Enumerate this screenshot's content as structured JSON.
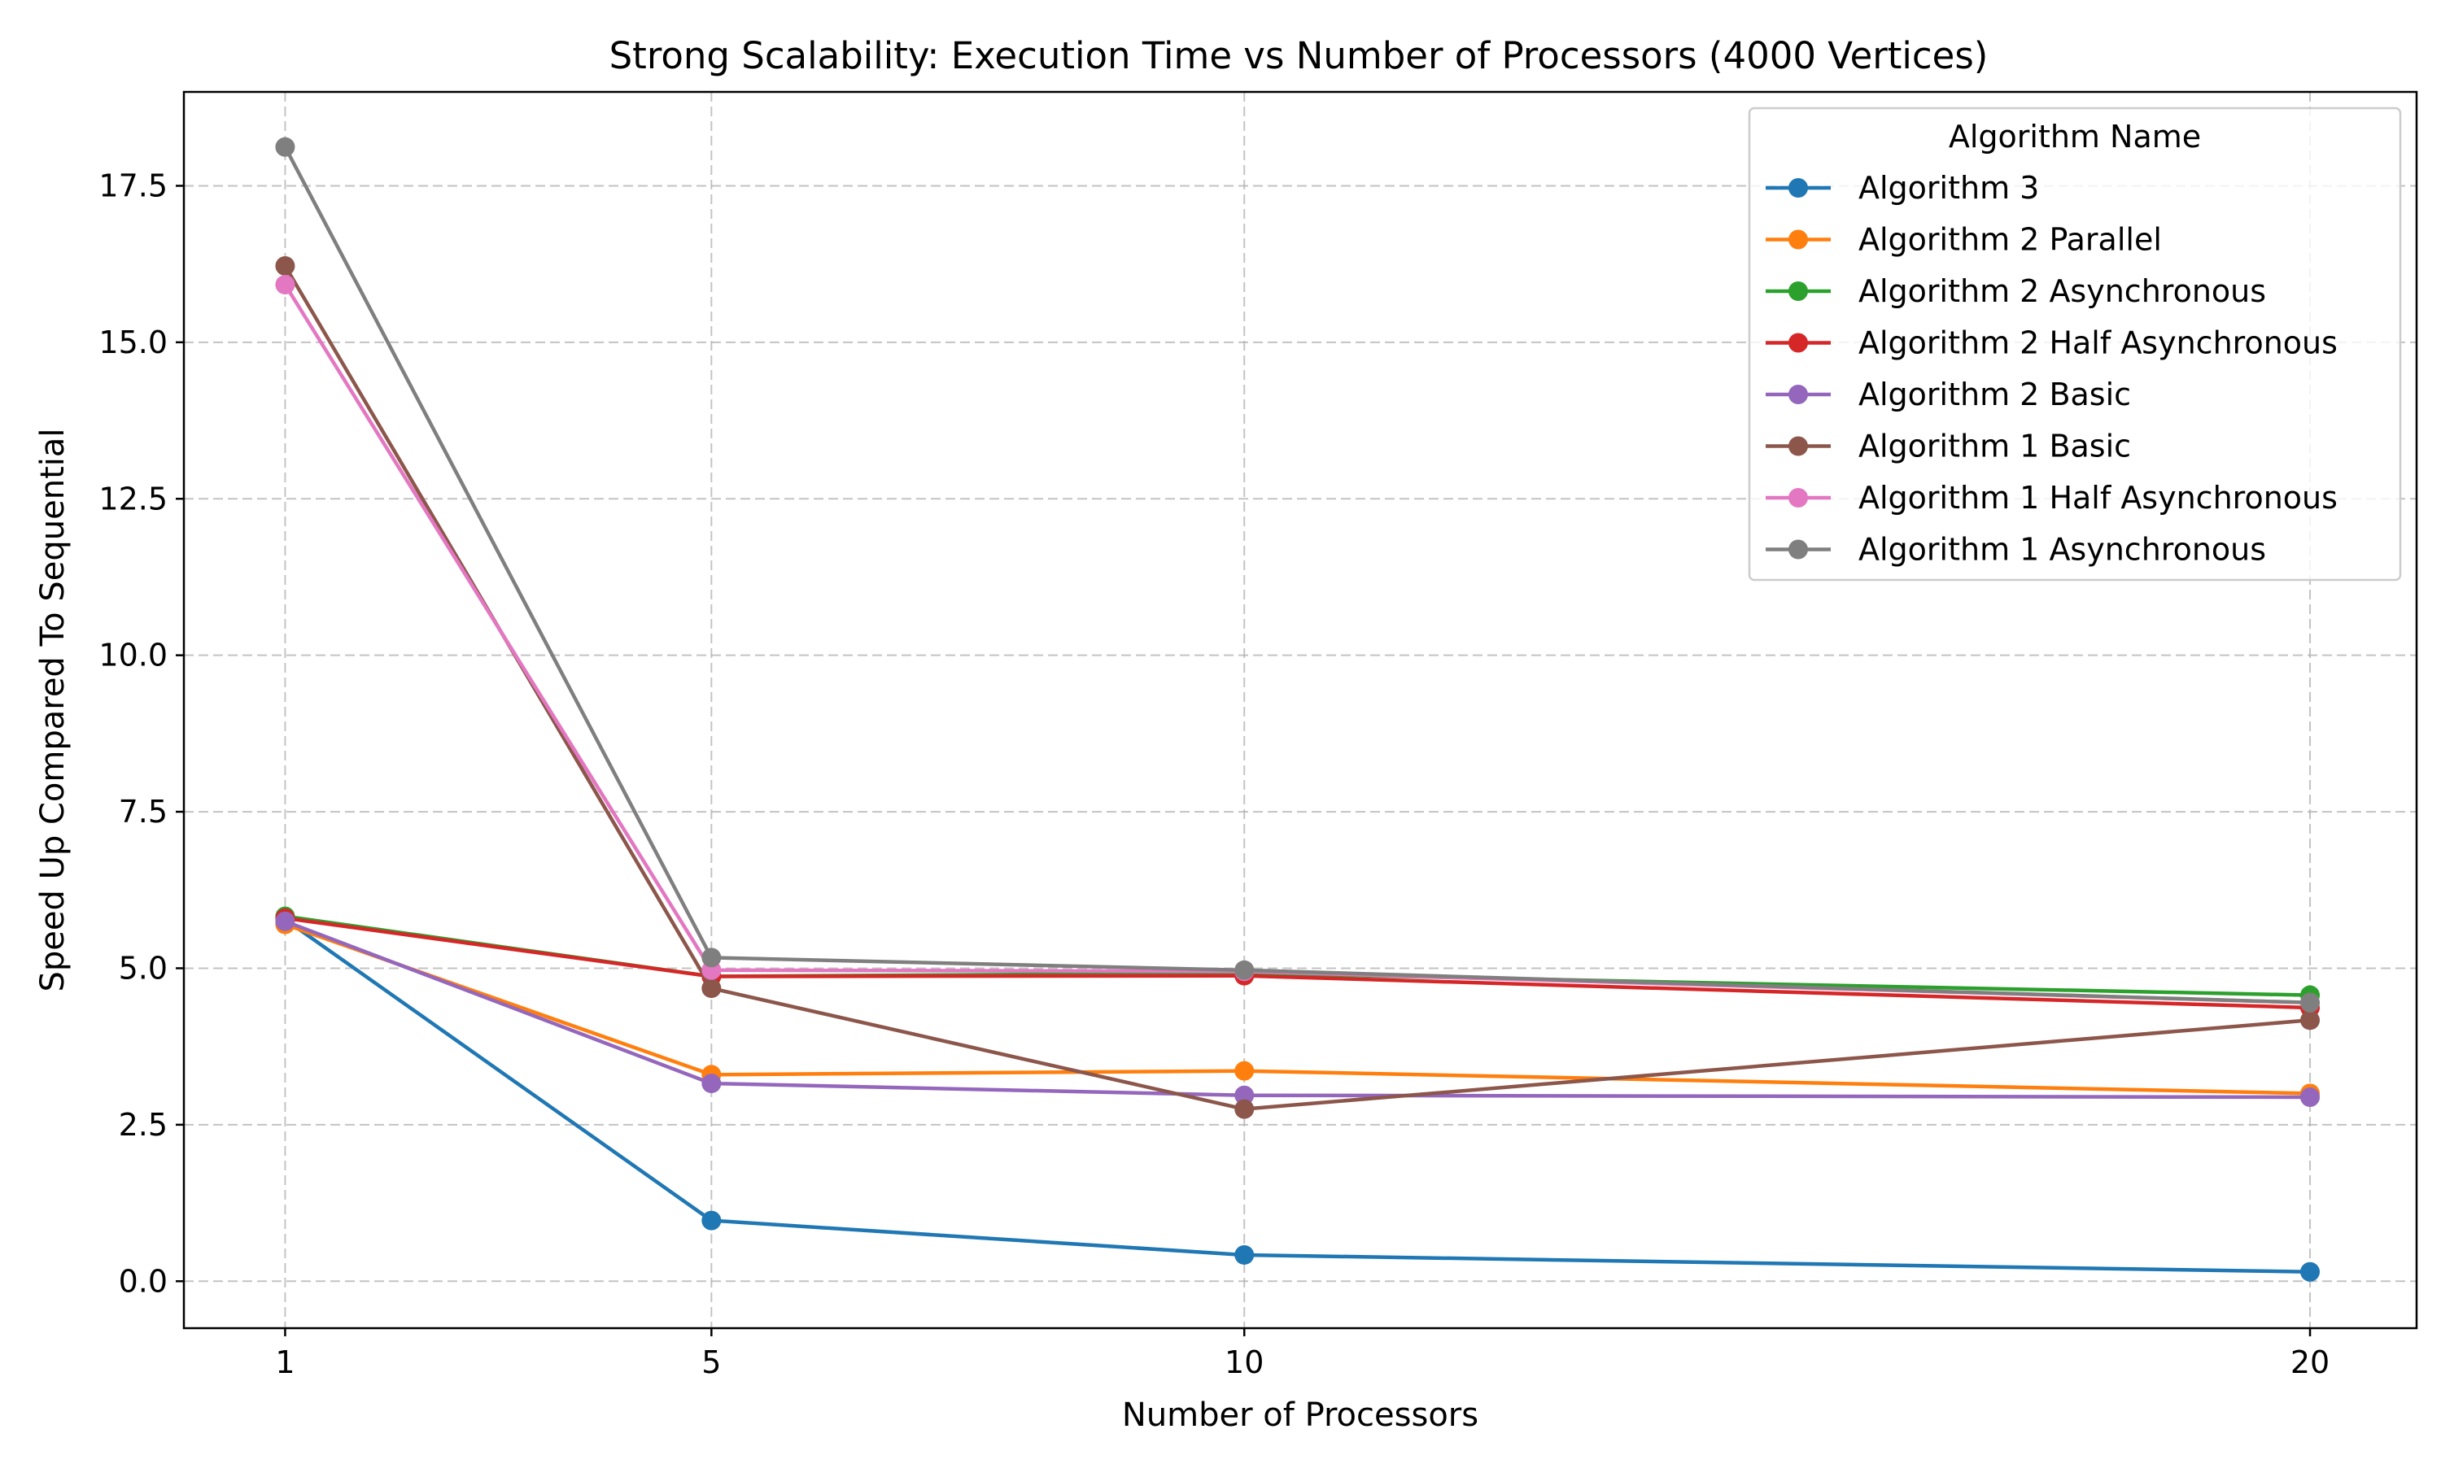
{
  "chart_data": {
    "type": "line",
    "title": "Strong Scalability: Execution Time vs Number of Processors (4000 Vertices)",
    "xlabel": "Number of Processors",
    "ylabel": "Speed Up Compared To Sequential",
    "x": [
      1,
      5,
      10,
      20
    ],
    "x_tick_labels": [
      "1",
      "5",
      "10",
      "20"
    ],
    "y_ticks": [
      0.0,
      2.5,
      5.0,
      7.5,
      10.0,
      12.5,
      15.0,
      17.5
    ],
    "y_tick_labels": [
      "0.0",
      "2.5",
      "5.0",
      "7.5",
      "10.0",
      "12.5",
      "15.0",
      "17.5"
    ],
    "xlim": [
      0.05,
      21.0
    ],
    "ylim": [
      -0.75,
      19.0
    ],
    "grid": true,
    "legend": {
      "title": "Algorithm Name",
      "placement": "top-right"
    },
    "series": [
      {
        "name": "Algorithm 3",
        "color": "#1f77b4",
        "values": [
          5.78,
          0.97,
          0.42,
          0.15
        ]
      },
      {
        "name": "Algorithm 2 Parallel",
        "color": "#ff7f0e",
        "values": [
          5.7,
          3.3,
          3.36,
          3.0
        ]
      },
      {
        "name": "Algorithm 2 Asynchronous",
        "color": "#2ca02c",
        "values": [
          5.83,
          4.87,
          4.92,
          4.57
        ]
      },
      {
        "name": "Algorithm 2 Half Asynchronous",
        "color": "#d62728",
        "values": [
          5.8,
          4.87,
          4.88,
          4.37
        ]
      },
      {
        "name": "Algorithm 2 Basic",
        "color": "#9467bd",
        "values": [
          5.75,
          3.16,
          2.97,
          2.94
        ]
      },
      {
        "name": "Algorithm 1 Basic",
        "color": "#8c564b",
        "values": [
          16.22,
          4.68,
          2.75,
          4.17
        ]
      },
      {
        "name": "Algorithm 1 Half Asynchronous",
        "color": "#e377c2",
        "values": [
          15.92,
          4.97,
          4.95,
          4.45
        ]
      },
      {
        "name": "Algorithm 1 Asynchronous",
        "color": "#7f7f7f",
        "values": [
          18.12,
          5.17,
          4.97,
          4.45
        ]
      }
    ]
  }
}
